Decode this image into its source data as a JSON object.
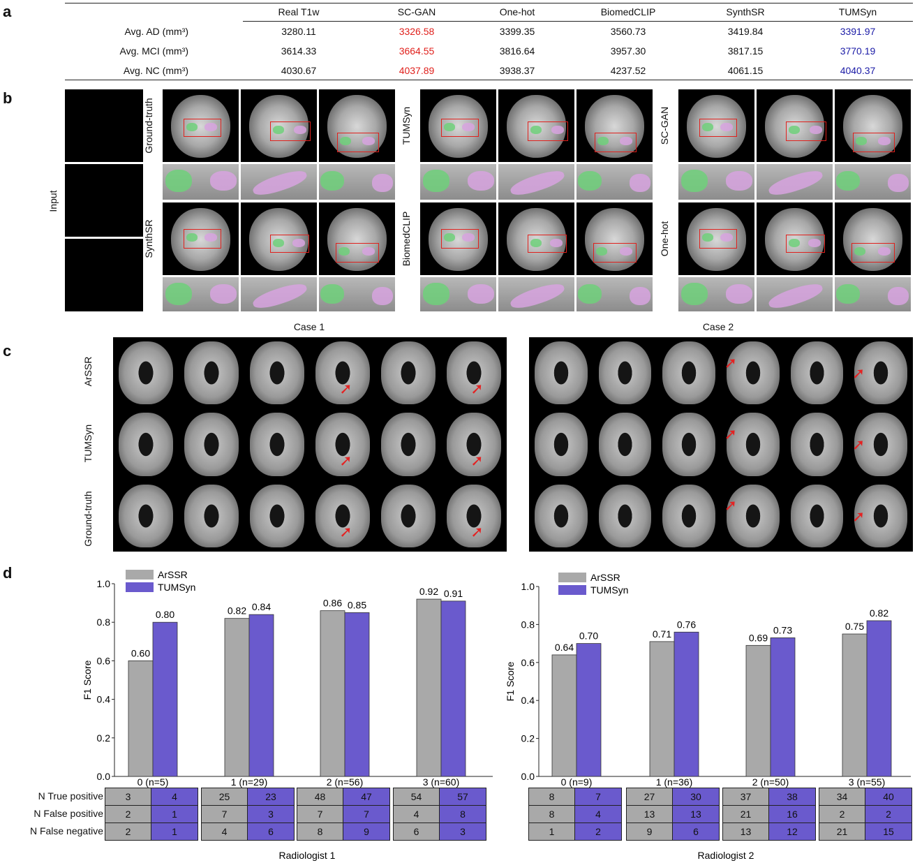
{
  "panels": {
    "a": "a",
    "b": "b",
    "c": "c",
    "d": "d"
  },
  "table_a": {
    "columns": [
      "Real T1w",
      "SC-GAN",
      "One-hot",
      "BiomedCLIP",
      "SynthSR",
      "TUMSyn"
    ],
    "rows": [
      {
        "label": "Avg. AD (mm³)",
        "values": [
          "3280.11",
          "3326.58",
          "3399.35",
          "3560.73",
          "3419.84",
          "3391.97"
        ]
      },
      {
        "label": "Avg. MCI (mm³)",
        "values": [
          "3614.33",
          "3664.55",
          "3816.64",
          "3957.30",
          "3817.15",
          "3770.19"
        ]
      },
      {
        "label": "Avg. NC (mm³)",
        "values": [
          "4030.67",
          "4037.89",
          "3938.37",
          "4237.52",
          "4061.15",
          "4040.37"
        ]
      }
    ],
    "highlight_colors": {
      "SC-GAN": "#e0201c",
      "TUMSyn": "#1a1aa6"
    }
  },
  "panel_b": {
    "input_label": "Input",
    "method_labels": [
      "Ground-truth",
      "SynthSR",
      "TUMSyn",
      "BiomedCLIP",
      "SC-GAN",
      "One-hot"
    ],
    "cases": [
      "Case 1",
      "Case 2"
    ],
    "colors": {
      "hippocampus_left": "#6fd07a",
      "hippocampus_right": "#d7a3df",
      "box": "#e0201c"
    }
  },
  "panel_c": {
    "row_labels": [
      "ArSSR",
      "TUMSyn",
      "Ground-truth"
    ],
    "arrow_color": "#e42222"
  },
  "chart_data": [
    {
      "type": "bar",
      "title": "",
      "caption": "Radiologist 1",
      "ylabel": "F1 Score",
      "ylim": [
        0.0,
        1.0
      ],
      "yticks": [
        "0.0",
        "0.2",
        "0.4",
        "0.6",
        "0.8",
        "1.0"
      ],
      "categories": [
        "0 (n=5)",
        "1 (n=29)",
        "2 (n=56)",
        "3 (n=60)"
      ],
      "series": [
        {
          "name": "ArSSR",
          "color": "#a9a9a9",
          "values": [
            0.6,
            0.82,
            0.86,
            0.92
          ],
          "labels": [
            "0.60",
            "0.82",
            "0.86",
            "0.92"
          ]
        },
        {
          "name": "TUMSyn",
          "color": "#6a5acd",
          "values": [
            0.8,
            0.84,
            0.85,
            0.91
          ],
          "labels": [
            "0.80",
            "0.84",
            "0.85",
            "0.91"
          ]
        }
      ],
      "legend": "top-left",
      "table": {
        "row_labels": [
          "N True positive",
          "N False positive",
          "N False negative"
        ],
        "groups": [
          {
            "arssr": [
              "3",
              "2",
              "2"
            ],
            "tumsyn": [
              "4",
              "1",
              "1"
            ]
          },
          {
            "arssr": [
              "25",
              "7",
              "4"
            ],
            "tumsyn": [
              "23",
              "3",
              "6"
            ]
          },
          {
            "arssr": [
              "48",
              "7",
              "8"
            ],
            "tumsyn": [
              "47",
              "7",
              "9"
            ]
          },
          {
            "arssr": [
              "54",
              "4",
              "6"
            ],
            "tumsyn": [
              "57",
              "8",
              "3"
            ]
          }
        ]
      }
    },
    {
      "type": "bar",
      "title": "",
      "caption": "Radiologist 2",
      "ylabel": "F1 Score",
      "ylim": [
        0.0,
        1.0
      ],
      "yticks": [
        "0.0",
        "0.2",
        "0.4",
        "0.6",
        "0.8",
        "1.0"
      ],
      "categories": [
        "0 (n=9)",
        "1 (n=36)",
        "2 (n=50)",
        "3 (n=55)"
      ],
      "series": [
        {
          "name": "ArSSR",
          "color": "#a9a9a9",
          "values": [
            0.64,
            0.71,
            0.69,
            0.75
          ],
          "labels": [
            "0.64",
            "0.71",
            "0.69",
            "0.75"
          ]
        },
        {
          "name": "TUMSyn",
          "color": "#6a5acd",
          "values": [
            0.7,
            0.76,
            0.73,
            0.82
          ],
          "labels": [
            "0.70",
            "0.76",
            "0.73",
            "0.82"
          ]
        }
      ],
      "legend": "top-left",
      "table": {
        "row_labels": [
          "",
          "",
          ""
        ],
        "groups": [
          {
            "arssr": [
              "8",
              "8",
              "1"
            ],
            "tumsyn": [
              "7",
              "4",
              "2"
            ]
          },
          {
            "arssr": [
              "27",
              "13",
              "9"
            ],
            "tumsyn": [
              "30",
              "13",
              "6"
            ]
          },
          {
            "arssr": [
              "37",
              "21",
              "13"
            ],
            "tumsyn": [
              "38",
              "16",
              "12"
            ]
          },
          {
            "arssr": [
              "34",
              "2",
              "21"
            ],
            "tumsyn": [
              "40",
              "2",
              "15"
            ]
          }
        ]
      }
    }
  ]
}
